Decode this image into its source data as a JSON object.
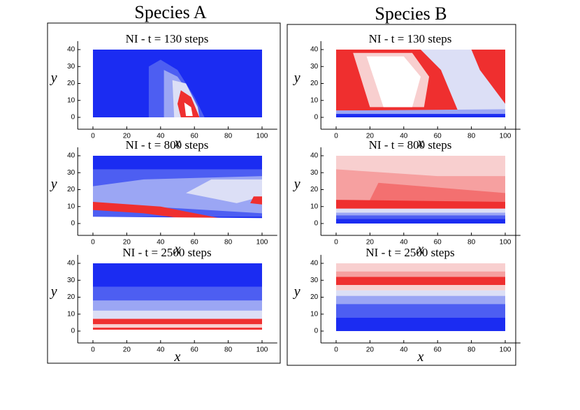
{
  "column_titles": [
    "Species A",
    "Species B"
  ],
  "chart_data": [
    {
      "type": "contour",
      "title": "NI - t = 130 steps",
      "xlabel": "x",
      "ylabel": "y",
      "xlim": [
        -9,
        109
      ],
      "ylim": [
        -7,
        45
      ],
      "xticks": [
        0,
        20,
        40,
        60,
        80,
        100
      ],
      "yticks": [
        0,
        10,
        20,
        30,
        40
      ]
    },
    {
      "type": "contour",
      "title": "NI - t = 800 steps",
      "xlabel": "x",
      "ylabel": "y",
      "xlim": [
        -9,
        109
      ],
      "ylim": [
        -7,
        45
      ],
      "xticks": [
        0,
        20,
        40,
        60,
        80,
        100
      ],
      "yticks": [
        0,
        10,
        20,
        30,
        40
      ]
    },
    {
      "type": "contour",
      "title": "NI - t = 2500 steps",
      "xlabel": "x",
      "ylabel": "y",
      "xlim": [
        -9,
        109
      ],
      "ylim": [
        -7,
        45
      ],
      "xticks": [
        0,
        20,
        40,
        60,
        80,
        100
      ],
      "yticks": [
        0,
        10,
        20,
        30,
        40
      ]
    },
    {
      "type": "contour",
      "title": "NI - t = 130 steps",
      "xlabel": "x",
      "ylabel": "y",
      "xlim": [
        -9,
        109
      ],
      "ylim": [
        -7,
        45
      ],
      "xticks": [
        0,
        20,
        40,
        60,
        80,
        100
      ],
      "yticks": [
        0,
        10,
        20,
        30,
        40
      ]
    },
    {
      "type": "contour",
      "title": "NI - t = 800 steps",
      "xlabel": "x",
      "ylabel": "y",
      "xlim": [
        -9,
        109
      ],
      "ylim": [
        -7,
        45
      ],
      "xticks": [
        0,
        20,
        40,
        60,
        80,
        100
      ],
      "yticks": [
        0,
        10,
        20,
        30,
        40
      ]
    },
    {
      "type": "contour",
      "title": "NI - t = 2500 steps",
      "xlabel": "x",
      "ylabel": "y",
      "xlim": [
        -9,
        109
      ],
      "ylim": [
        -7,
        45
      ],
      "xticks": [
        0,
        20,
        40,
        60,
        80,
        100
      ],
      "yticks": [
        0,
        10,
        20,
        30,
        40
      ]
    }
  ]
}
